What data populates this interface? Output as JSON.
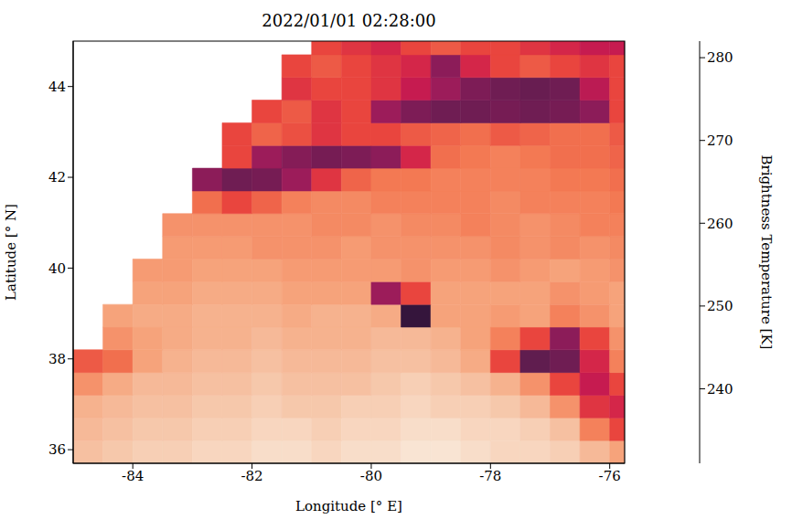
{
  "chart_data": {
    "type": "heatmap",
    "title": "2022/01/01 02:28:00",
    "x_label": "Longitude [° E]",
    "y_label": "Latitude [° N]",
    "x": [
      -84.75,
      -84.25,
      -83.75,
      -83.25,
      -82.75,
      -82.25,
      -81.75,
      -81.25,
      -80.75,
      -80.25,
      -79.75,
      -79.25,
      -78.75,
      -78.25,
      -77.75,
      -77.25,
      -76.75,
      -76.25,
      -75.75
    ],
    "y": [
      35.95,
      36.45,
      36.95,
      37.45,
      37.95,
      38.45,
      38.95,
      39.45,
      39.95,
      40.45,
      40.95,
      41.45,
      41.95,
      42.45,
      42.95,
      43.45,
      43.95,
      44.45,
      44.95
    ],
    "z": [
      [
        276,
        277,
        278,
        278,
        279,
        279,
        280,
        280,
        279,
        280,
        280,
        281,
        281,
        280,
        279,
        279,
        278,
        275,
        272
      ],
      [
        275,
        276,
        277,
        277,
        278,
        278,
        279,
        279,
        278,
        279,
        279,
        280,
        280,
        279,
        279,
        278,
        276,
        268,
        262
      ],
      [
        274,
        275,
        276,
        276,
        277,
        277,
        278,
        277,
        277,
        278,
        278,
        279,
        278,
        278,
        277,
        275,
        270,
        260,
        258
      ],
      [
        270,
        273,
        275,
        275,
        276,
        276,
        277,
        276,
        276,
        276,
        277,
        278,
        277,
        276,
        274,
        270,
        262,
        256,
        262
      ],
      [
        264,
        266,
        272,
        274,
        275,
        275,
        276,
        275,
        275,
        275,
        276,
        276,
        275,
        273,
        262,
        244,
        246,
        258,
        268
      ],
      [
        null,
        270,
        272,
        273,
        274,
        274,
        275,
        274,
        274,
        274,
        275,
        275,
        274,
        272,
        268,
        262,
        250,
        262,
        270
      ],
      [
        null,
        272,
        273,
        273,
        274,
        274,
        274,
        273,
        274,
        274,
        273,
        238,
        272,
        272,
        271,
        272,
        268,
        270,
        272
      ],
      [
        null,
        null,
        272,
        272,
        273,
        273,
        273,
        272,
        272,
        272,
        252,
        262,
        272,
        272,
        272,
        272,
        270,
        271,
        272
      ],
      [
        null,
        null,
        271,
        271,
        272,
        272,
        272,
        271,
        271,
        271,
        271,
        270,
        271,
        271,
        270,
        271,
        272,
        271,
        270
      ],
      [
        null,
        null,
        null,
        271,
        271,
        271,
        270,
        270,
        270,
        271,
        270,
        270,
        270,
        270,
        269,
        270,
        269,
        270,
        269
      ],
      [
        null,
        null,
        null,
        270,
        270,
        270,
        270,
        270,
        269,
        269,
        270,
        269,
        269,
        268,
        269,
        270,
        269,
        268,
        268
      ],
      [
        null,
        null,
        null,
        null,
        266,
        262,
        265,
        268,
        269,
        269,
        268,
        268,
        268,
        268,
        269,
        268,
        268,
        268,
        267
      ],
      [
        null,
        null,
        null,
        null,
        250,
        246,
        247,
        252,
        260,
        265,
        267,
        267,
        268,
        268,
        268,
        268,
        267,
        267,
        266
      ],
      [
        null,
        null,
        null,
        null,
        null,
        262,
        252,
        249,
        247,
        248,
        250,
        258,
        266,
        267,
        268,
        267,
        266,
        266,
        265
      ],
      [
        null,
        null,
        null,
        null,
        null,
        262,
        265,
        263,
        260,
        262,
        262,
        264,
        265,
        266,
        264,
        265,
        266,
        266,
        264
      ],
      [
        null,
        null,
        null,
        null,
        null,
        null,
        262,
        264,
        260,
        262,
        252,
        248,
        246,
        246,
        247,
        246,
        247,
        250,
        262
      ],
      [
        null,
        null,
        null,
        null,
        null,
        null,
        null,
        260,
        262,
        262,
        260,
        256,
        252,
        248,
        246,
        245,
        246,
        255,
        262
      ],
      [
        null,
        null,
        null,
        null,
        null,
        null,
        null,
        262,
        264,
        262,
        260,
        258,
        250,
        258,
        262,
        264,
        262,
        260,
        262
      ],
      [
        null,
        null,
        null,
        null,
        null,
        null,
        null,
        null,
        262,
        260,
        258,
        262,
        264,
        262,
        262,
        260,
        258,
        256,
        256
      ]
    ],
    "xlim": [
      -85,
      -75.75
    ],
    "ylim": [
      35.7,
      45
    ],
    "xticks": [
      -84,
      -82,
      -80,
      -78,
      -76
    ],
    "yticks": [
      36,
      38,
      40,
      42,
      44
    ],
    "colorbar_label": "Brightness Temperature [K]",
    "colorbar_lim": [
      231,
      282
    ],
    "colorbar_ticks": [
      240,
      250,
      260,
      270,
      280
    ]
  }
}
